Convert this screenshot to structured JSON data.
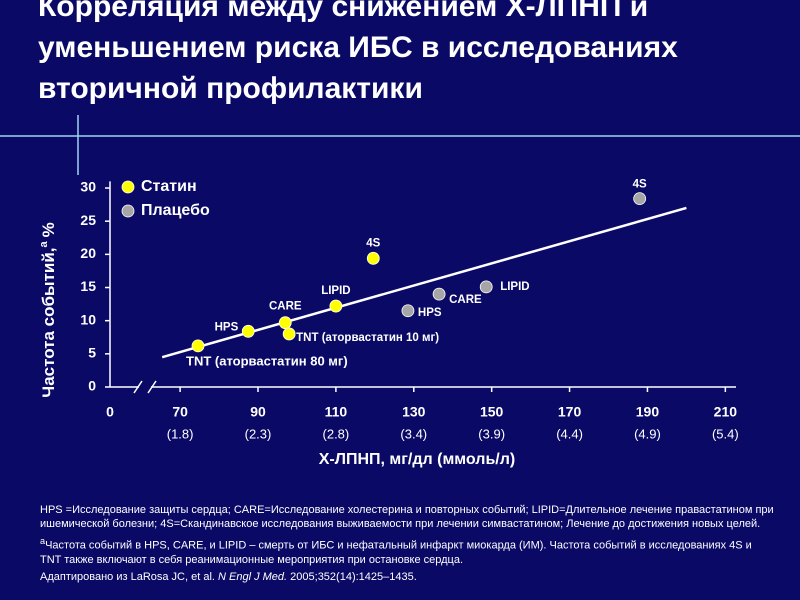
{
  "chart_data": {
    "type": "scatter",
    "title": "Корреляция между снижением Х-ЛПНП и уменьшением риска ИБС в исследованиях вторичной профилактики",
    "ylabel": "Частота событий,",
    "ylabel_sup": "a",
    "ylabel_unit": "%",
    "xlabel": "Х-ЛПНП, мг/дл (ммоль/л)",
    "x_origin_label": "0",
    "xlim": [
      52,
      218
    ],
    "xticks": [
      70,
      90,
      110,
      130,
      150,
      170,
      190,
      210
    ],
    "x_secondary_labels": [
      "(1.8)",
      "(2.3)",
      "(2.8)",
      "(3.4)",
      "(3.9)",
      "(4.4)",
      "(4.9)",
      "(5.4)"
    ],
    "ylim": [
      0,
      31
    ],
    "yticks": [
      0,
      5,
      10,
      15,
      20,
      25,
      30
    ],
    "series": [
      {
        "name": "Статин",
        "color": "#ffff00",
        "x": [
          74.6,
          87.5,
          97,
          98,
          110,
          119.6
        ],
        "values": [
          6.2,
          8.4,
          9.7,
          8.0,
          12.2,
          19.4
        ],
        "labels": [
          "TNT (аторвастатин 80 мг)",
          "HPS",
          "CARE",
          "TNT (аторвастатин 10 мг)",
          "LIPID",
          "4S"
        ]
      },
      {
        "name": "Плацебо",
        "color": "#a6a6a6",
        "x": [
          128.5,
          136.5,
          148.6,
          188
        ],
        "values": [
          11.5,
          14.0,
          15.1,
          28.4
        ],
        "labels": [
          "HPS",
          "CARE",
          "LIPID",
          "4S"
        ]
      }
    ],
    "trendline": {
      "color": "#ffffff",
      "x": [
        65.4,
        200
      ],
      "y": [
        4.5,
        27
      ]
    },
    "footnotes": [
      {
        "text": "HPS =Исследование защиты сердца; CARE=Исследование холестерина и повторных событий; LIPID=Длительное лечение правастатином при ишемической болезни; 4S=Скандинавское исследования выживаемости при лечении симвастатином; Лечение до достижения новых целей."
      },
      {
        "sup": "a",
        "text": "Частота событий в HPS, CARE, и LIPID – смерть от ИБС и нефатальный инфаркт миокарда (ИМ). Частота событий в исследованиях 4S и TNT также включают в себя реанимационные мероприятия при остановке сердца."
      },
      {
        "text": "Адаптировано из LaRosa JC, et al. ",
        "italic": "N Engl J Med.",
        "after": " 2005;352(14):1425–1435."
      }
    ]
  }
}
